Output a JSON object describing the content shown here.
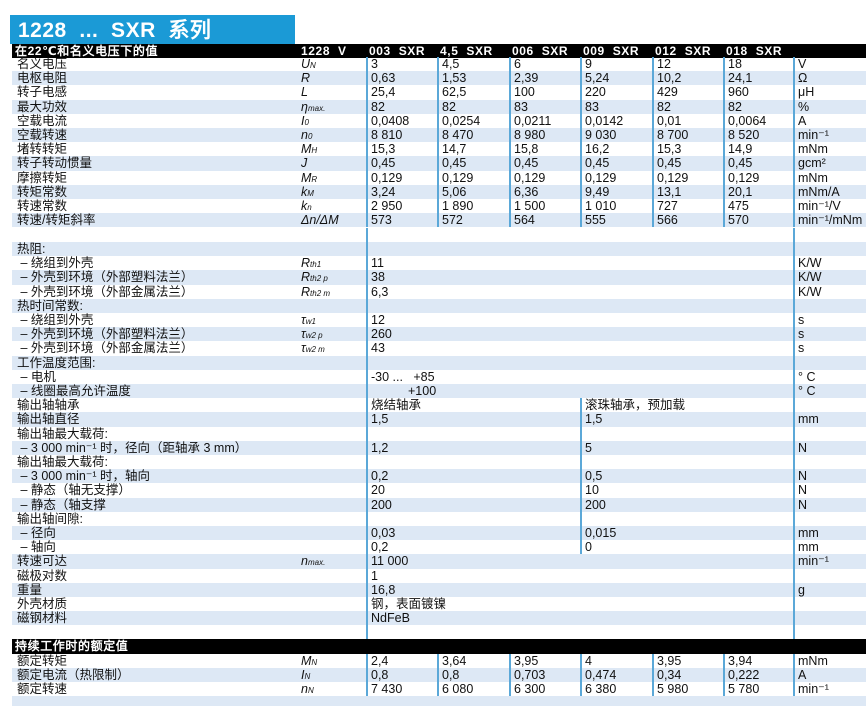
{
  "title": "1228  ...  SXR  系列",
  "header": {
    "label": "在22℃和名义电压下的值",
    "sym": "1228  V",
    "models": [
      "003  SXR",
      "4,5  SXR",
      "006  SXR",
      "009  SXR",
      "012  SXR",
      "018  SXR"
    ]
  },
  "specs": [
    {
      "label": "名义电压",
      "sym": {
        "m": "U",
        "s": "N"
      },
      "values": [
        "3",
        "4,5",
        "6",
        "9",
        "12",
        "18"
      ],
      "unit": "V"
    },
    {
      "label": "电枢电阻",
      "sym": {
        "m": "R",
        "s": ""
      },
      "values": [
        "0,63",
        "1,53",
        "2,39",
        "5,24",
        "10,2",
        "24,1"
      ],
      "unit": "Ω"
    },
    {
      "label": "转子电感",
      "sym": {
        "m": "L",
        "s": ""
      },
      "values": [
        "25,4",
        "62,5",
        "100",
        "220",
        "429",
        "960"
      ],
      "unit": "μH"
    },
    {
      "label": "最大功效",
      "sym": {
        "m": "η",
        "s": "max."
      },
      "values": [
        "82",
        "82",
        "83",
        "83",
        "82",
        "82"
      ],
      "unit": "%"
    },
    {
      "label": "空载电流",
      "sym": {
        "m": "I",
        "s": "0"
      },
      "values": [
        "0,0408",
        "0,0254",
        "0,0211",
        "0,0142",
        "0,01",
        "0,0064"
      ],
      "unit": "A"
    },
    {
      "label": "空载转速",
      "sym": {
        "m": "n",
        "s": "0"
      },
      "values": [
        "8 810",
        "8 470",
        "8 980",
        "9 030",
        "8 700",
        "8 520"
      ],
      "unit": "min⁻¹"
    },
    {
      "label": "堵转转矩",
      "sym": {
        "m": "M",
        "s": "H"
      },
      "values": [
        "15,3",
        "14,7",
        "15,8",
        "16,2",
        "15,3",
        "14,9"
      ],
      "unit": "mNm"
    },
    {
      "label": "转子转动惯量",
      "sym": {
        "m": "J",
        "s": ""
      },
      "values": [
        "0,45",
        "0,45",
        "0,45",
        "0,45",
        "0,45",
        "0,45"
      ],
      "unit": "gcm²"
    },
    {
      "label": "摩擦转矩",
      "sym": {
        "m": "M",
        "s": "R"
      },
      "values": [
        "0,129",
        "0,129",
        "0,129",
        "0,129",
        "0,129",
        "0,129"
      ],
      "unit": "mNm"
    },
    {
      "label": "转矩常数",
      "sym": {
        "m": "k",
        "s": "M"
      },
      "values": [
        "3,24",
        "5,06",
        "6,36",
        "9,49",
        "13,1",
        "20,1"
      ],
      "unit": "mNm/A"
    },
    {
      "label": "转速常数",
      "sym": {
        "m": "k",
        "s": "n"
      },
      "values": [
        "2 950",
        "1 890",
        "1 500",
        "1 010",
        "727",
        "475"
      ],
      "unit": "min⁻¹/V"
    },
    {
      "label": "转速/转矩斜率",
      "sym": {
        "m": "Δn/ΔM",
        "s": ""
      },
      "values": [
        "573",
        "572",
        "564",
        "555",
        "566",
        "570"
      ],
      "unit": "min⁻¹/mNm"
    }
  ],
  "general": [
    {
      "label": "热阻:",
      "sym": {
        "m": "",
        "s": ""
      },
      "values": [],
      "unit": ""
    },
    {
      "label": " – 绕组到外壳",
      "sym": {
        "m": "R",
        "s": "th1"
      },
      "values": [
        "11"
      ],
      "unit": "K/W"
    },
    {
      "label": " – 外壳到环境（外部塑料法兰）",
      "sym": {
        "m": "R",
        "s": "th2 p"
      },
      "values": [
        "38"
      ],
      "unit": "K/W"
    },
    {
      "label": " – 外壳到环境（外部金属法兰）",
      "sym": {
        "m": "R",
        "s": "th2 m"
      },
      "values": [
        "6,3"
      ],
      "unit": "K/W"
    },
    {
      "label": "热时间常数:",
      "sym": {
        "m": "",
        "s": ""
      },
      "values": [],
      "unit": ""
    },
    {
      "label": " – 绕组到外壳",
      "sym": {
        "m": "τ",
        "s": "w1"
      },
      "values": [
        "12"
      ],
      "unit": "s"
    },
    {
      "label": " – 外壳到环境（外部塑料法兰）",
      "sym": {
        "m": "τ",
        "s": "w2 p"
      },
      "values": [
        "260"
      ],
      "unit": "s"
    },
    {
      "label": " – 外壳到环境（外部金属法兰）",
      "sym": {
        "m": "τ",
        "s": "w2 m"
      },
      "values": [
        "43"
      ],
      "unit": "s"
    },
    {
      "label": "工作温度范围:",
      "sym": {
        "m": "",
        "s": ""
      },
      "values": [],
      "unit": ""
    },
    {
      "label": " – 电机",
      "sym": {
        "m": "",
        "s": ""
      },
      "values": [
        "-30 ...   +85"
      ],
      "unit": "° C"
    },
    {
      "label": " – 线圈最高允许温度",
      "sym": {
        "m": "",
        "s": ""
      },
      "values": [
        "+100"
      ],
      "unit": "° C"
    },
    {
      "label": "输出轴轴承",
      "sym": {
        "m": "",
        "s": ""
      },
      "values": [
        "烧结轴承",
        "滚珠轴承，预加载"
      ],
      "unit": ""
    },
    {
      "label": "输出轴直径",
      "sym": {
        "m": "",
        "s": ""
      },
      "values": [
        "1,5",
        "1,5"
      ],
      "unit": "mm"
    },
    {
      "label": "输出轴最大载荷:",
      "sym": {
        "m": "",
        "s": ""
      },
      "values": [
        "",
        ""
      ],
      "unit": ""
    },
    {
      "label": " – 3 000 min⁻¹ 时，径向（距轴承 3 mm）",
      "sym": {
        "m": "",
        "s": ""
      },
      "values": [
        "1,2",
        "5"
      ],
      "unit": "N"
    },
    {
      "label": "输出轴最大载荷:",
      "sym": {
        "m": "",
        "s": ""
      },
      "values": [
        "",
        ""
      ],
      "unit": ""
    },
    {
      "label": " – 3 000 min⁻¹ 时，轴向",
      "sym": {
        "m": "",
        "s": ""
      },
      "values": [
        "0,2",
        "0,5"
      ],
      "unit": "N"
    },
    {
      "label": " – 静态（轴无支撑）",
      "sym": {
        "m": "",
        "s": ""
      },
      "values": [
        "20",
        "10"
      ],
      "unit": "N"
    },
    {
      "label": " – 静态（轴支撑",
      "sym": {
        "m": "",
        "s": ""
      },
      "values": [
        "200",
        "200"
      ],
      "unit": "N"
    },
    {
      "label": "输出轴间隙:",
      "sym": {
        "m": "",
        "s": ""
      },
      "values": [
        "",
        ""
      ],
      "unit": ""
    },
    {
      "label": " – 径向",
      "sym": {
        "m": "",
        "s": ""
      },
      "values": [
        "0,03",
        "0,015"
      ],
      "unit": "mm"
    },
    {
      "label": " – 轴向",
      "sym": {
        "m": "",
        "s": ""
      },
      "values": [
        "0,2",
        "0"
      ],
      "unit": "mm"
    },
    {
      "label": "转速可达",
      "sym": {
        "m": "n",
        "s": "max."
      },
      "values": [
        "11 000"
      ],
      "unit": "min⁻¹"
    },
    {
      "label": "磁极对数",
      "sym": {
        "m": "",
        "s": ""
      },
      "values": [
        "1"
      ],
      "unit": ""
    },
    {
      "label": "重量",
      "sym": {
        "m": "",
        "s": ""
      },
      "values": [
        "16,8"
      ],
      "unit": "g"
    },
    {
      "label": "外壳材质",
      "sym": {
        "m": "",
        "s": ""
      },
      "values": [
        "钢，表面镀镍"
      ],
      "unit": ""
    },
    {
      "label": "磁钢材料",
      "sym": {
        "m": "",
        "s": ""
      },
      "values": [
        "NdFeB"
      ],
      "unit": ""
    }
  ],
  "rated": {
    "title": "持续工作时的额定值",
    "rows": [
      {
        "label": "额定转矩",
        "sym": {
          "m": "M",
          "s": "N"
        },
        "values": [
          "2,4",
          "3,64",
          "3,95",
          "4",
          "3,95",
          "3,94"
        ],
        "unit": "mNm"
      },
      {
        "label": "额定电流（热限制）",
        "sym": {
          "m": "I",
          "s": "N"
        },
        "values": [
          "0,8",
          "0,8",
          "0,703",
          "0,474",
          "0,34",
          "0,222"
        ],
        "unit": "A"
      },
      {
        "label": "额定转速",
        "sym": {
          "m": "n",
          "s": "N"
        },
        "values": [
          "7 430",
          "6 080",
          "6 300",
          "6 380",
          "5 980",
          "5 780"
        ],
        "unit": "min⁻¹"
      }
    ]
  }
}
